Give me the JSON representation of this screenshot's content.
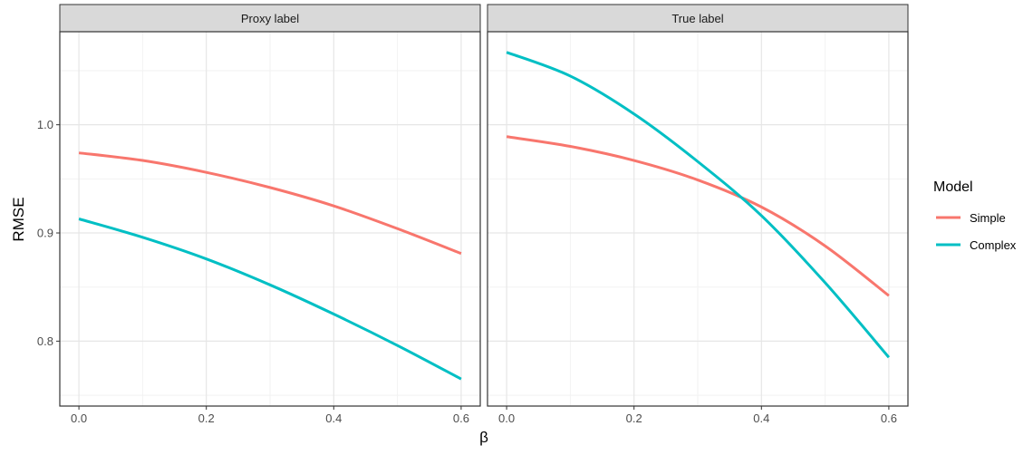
{
  "chart_data": {
    "type": "line",
    "xlabel": "β",
    "ylabel": "RMSE",
    "xlim": [
      -0.03,
      0.63
    ],
    "ylim": [
      0.74,
      1.086
    ],
    "x_ticks": [
      0.0,
      0.2,
      0.4,
      0.6
    ],
    "x_tick_labels": [
      "0.0",
      "0.2",
      "0.4",
      "0.6"
    ],
    "y_ticks": [
      0.8,
      0.9,
      1.0
    ],
    "y_tick_labels": [
      "0.8",
      "0.9",
      "1.0"
    ],
    "grid": true,
    "legend": {
      "title": "Model",
      "placement": "right",
      "entries": [
        {
          "name": "Simple",
          "color": "#F8766D"
        },
        {
          "name": "Complex",
          "color": "#00BFC4"
        }
      ]
    },
    "panels": [
      {
        "strip": "Proxy label",
        "series": [
          {
            "name": "Simple",
            "x": [
              0.0,
              0.1,
              0.2,
              0.3,
              0.4,
              0.5,
              0.6
            ],
            "y": [
              0.974,
              0.967,
              0.956,
              0.942,
              0.925,
              0.904,
              0.881
            ]
          },
          {
            "name": "Complex",
            "x": [
              0.0,
              0.1,
              0.2,
              0.3,
              0.4,
              0.5,
              0.6
            ],
            "y": [
              0.913,
              0.896,
              0.876,
              0.852,
              0.825,
              0.796,
              0.765
            ]
          }
        ]
      },
      {
        "strip": "True label",
        "series": [
          {
            "name": "Simple",
            "x": [
              0.0,
              0.1,
              0.2,
              0.3,
              0.4,
              0.5,
              0.6
            ],
            "y": [
              0.989,
              0.98,
              0.967,
              0.949,
              0.924,
              0.888,
              0.842
            ]
          },
          {
            "name": "Complex",
            "x": [
              0.0,
              0.1,
              0.2,
              0.3,
              0.4,
              0.5,
              0.6
            ],
            "y": [
              1.067,
              1.045,
              1.01,
              0.966,
              0.916,
              0.854,
              0.785
            ]
          }
        ]
      }
    ]
  }
}
